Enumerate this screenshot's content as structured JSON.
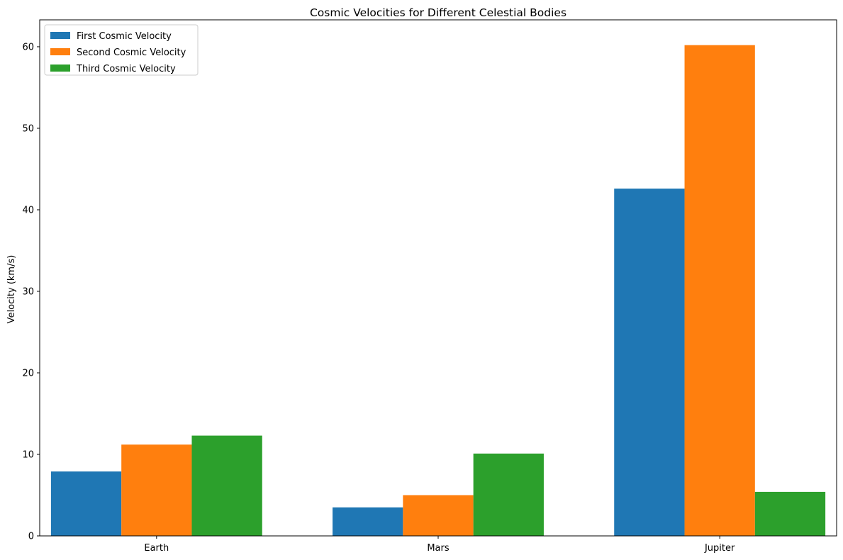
{
  "chart_data": {
    "type": "bar",
    "title": "Cosmic Velocities for Different Celestial Bodies",
    "xlabel": "",
    "ylabel": "Velocity (km/s)",
    "categories": [
      "Earth",
      "Mars",
      "Jupiter"
    ],
    "ylim": [
      0,
      63.3
    ],
    "yticks": [
      0,
      10,
      20,
      30,
      40,
      50,
      60
    ],
    "grid": false,
    "legend_position": "top-left",
    "series": [
      {
        "name": "First Cosmic Velocity",
        "color": "#1f77b4",
        "values": [
          7.9,
          3.5,
          42.6
        ]
      },
      {
        "name": "Second Cosmic Velocity",
        "color": "#ff7f0e",
        "values": [
          11.2,
          5.0,
          60.2
        ]
      },
      {
        "name": "Third Cosmic Velocity",
        "color": "#2ca02c",
        "values": [
          12.3,
          10.1,
          5.4
        ]
      }
    ]
  }
}
